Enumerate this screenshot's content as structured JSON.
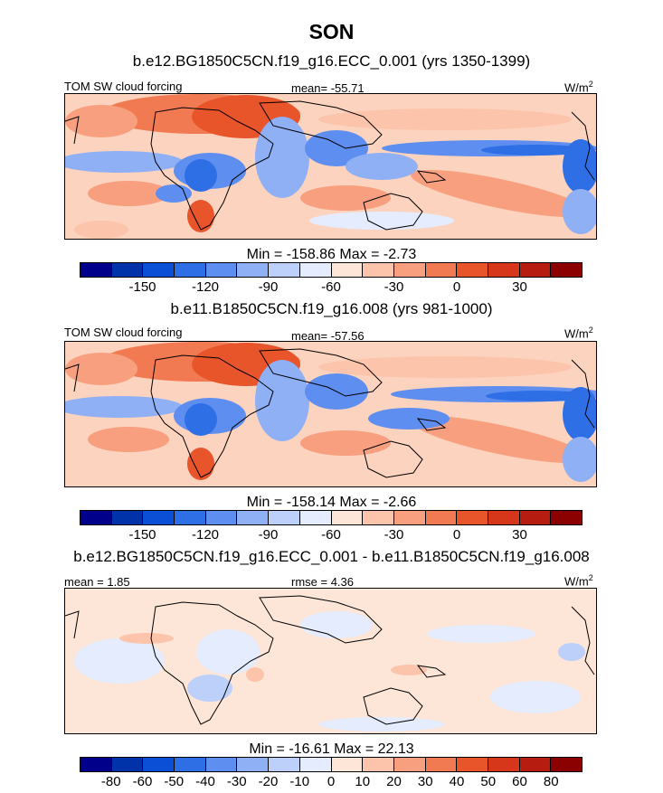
{
  "figure": {
    "title": "SON"
  },
  "panels": [
    {
      "title": "b.e12.BG1850C5CN.f19_g16.ECC_0.001 (yrs 1350-1399)",
      "left_label": "TOM SW cloud forcing",
      "center_label": "mean= -55.71",
      "units_base": "W/m",
      "units_exp": "2",
      "minmax": "Min = -158.86 Max =  -2.73",
      "colorbar": {
        "colors": [
          "#00008b",
          "#0033aa",
          "#0a4fd6",
          "#2f6fe6",
          "#5e8ef0",
          "#8fb0f5",
          "#bcd0fa",
          "#e4ecfd",
          "#fde6d8",
          "#fbc4ab",
          "#f79f7f",
          "#f27a52",
          "#e8552b",
          "#d6361a",
          "#b71c10",
          "#8b0000"
        ],
        "tick_labels": [
          "-150",
          "-120",
          "-90",
          "-60",
          "-30",
          "0",
          "30"
        ]
      }
    },
    {
      "title": "b.e11.B1850C5CN.f19_g16.008 (yrs 981-1000)",
      "left_label": "TOM SW cloud forcing",
      "center_label": "mean= -57.56",
      "units_base": "W/m",
      "units_exp": "2",
      "minmax": "Min = -158.14 Max =  -2.66",
      "colorbar": {
        "colors": [
          "#00008b",
          "#0033aa",
          "#0a4fd6",
          "#2f6fe6",
          "#5e8ef0",
          "#8fb0f5",
          "#bcd0fa",
          "#e4ecfd",
          "#fde6d8",
          "#fbc4ab",
          "#f79f7f",
          "#f27a52",
          "#e8552b",
          "#d6361a",
          "#b71c10",
          "#8b0000"
        ],
        "tick_labels": [
          "-150",
          "-120",
          "-90",
          "-60",
          "-30",
          "0",
          "30"
        ]
      }
    },
    {
      "title": "b.e12.BG1850C5CN.f19_g16.ECC_0.001 - b.e11.B1850C5CN.f19_g16.008",
      "left_label": "mean =   1.85",
      "center_label": "rmse =   4.36",
      "units_base": "W/m",
      "units_exp": "2",
      "minmax": "Min = -16.61 Max =  22.13",
      "colorbar": {
        "colors": [
          "#00008b",
          "#0033aa",
          "#0a4fd6",
          "#2f6fe6",
          "#5e8ef0",
          "#8fb0f5",
          "#bcd0fa",
          "#e4ecfd",
          "#fde6d8",
          "#fbc4ab",
          "#f79f7f",
          "#f27a52",
          "#e8552b",
          "#d6361a",
          "#b71c10",
          "#8b0000"
        ],
        "tick_labels": [
          "-80",
          "-60",
          "-50",
          "-40",
          "-30",
          "-20",
          "-10",
          "0",
          "10",
          "20",
          "30",
          "40",
          "50",
          "60",
          "80"
        ]
      }
    }
  ]
}
